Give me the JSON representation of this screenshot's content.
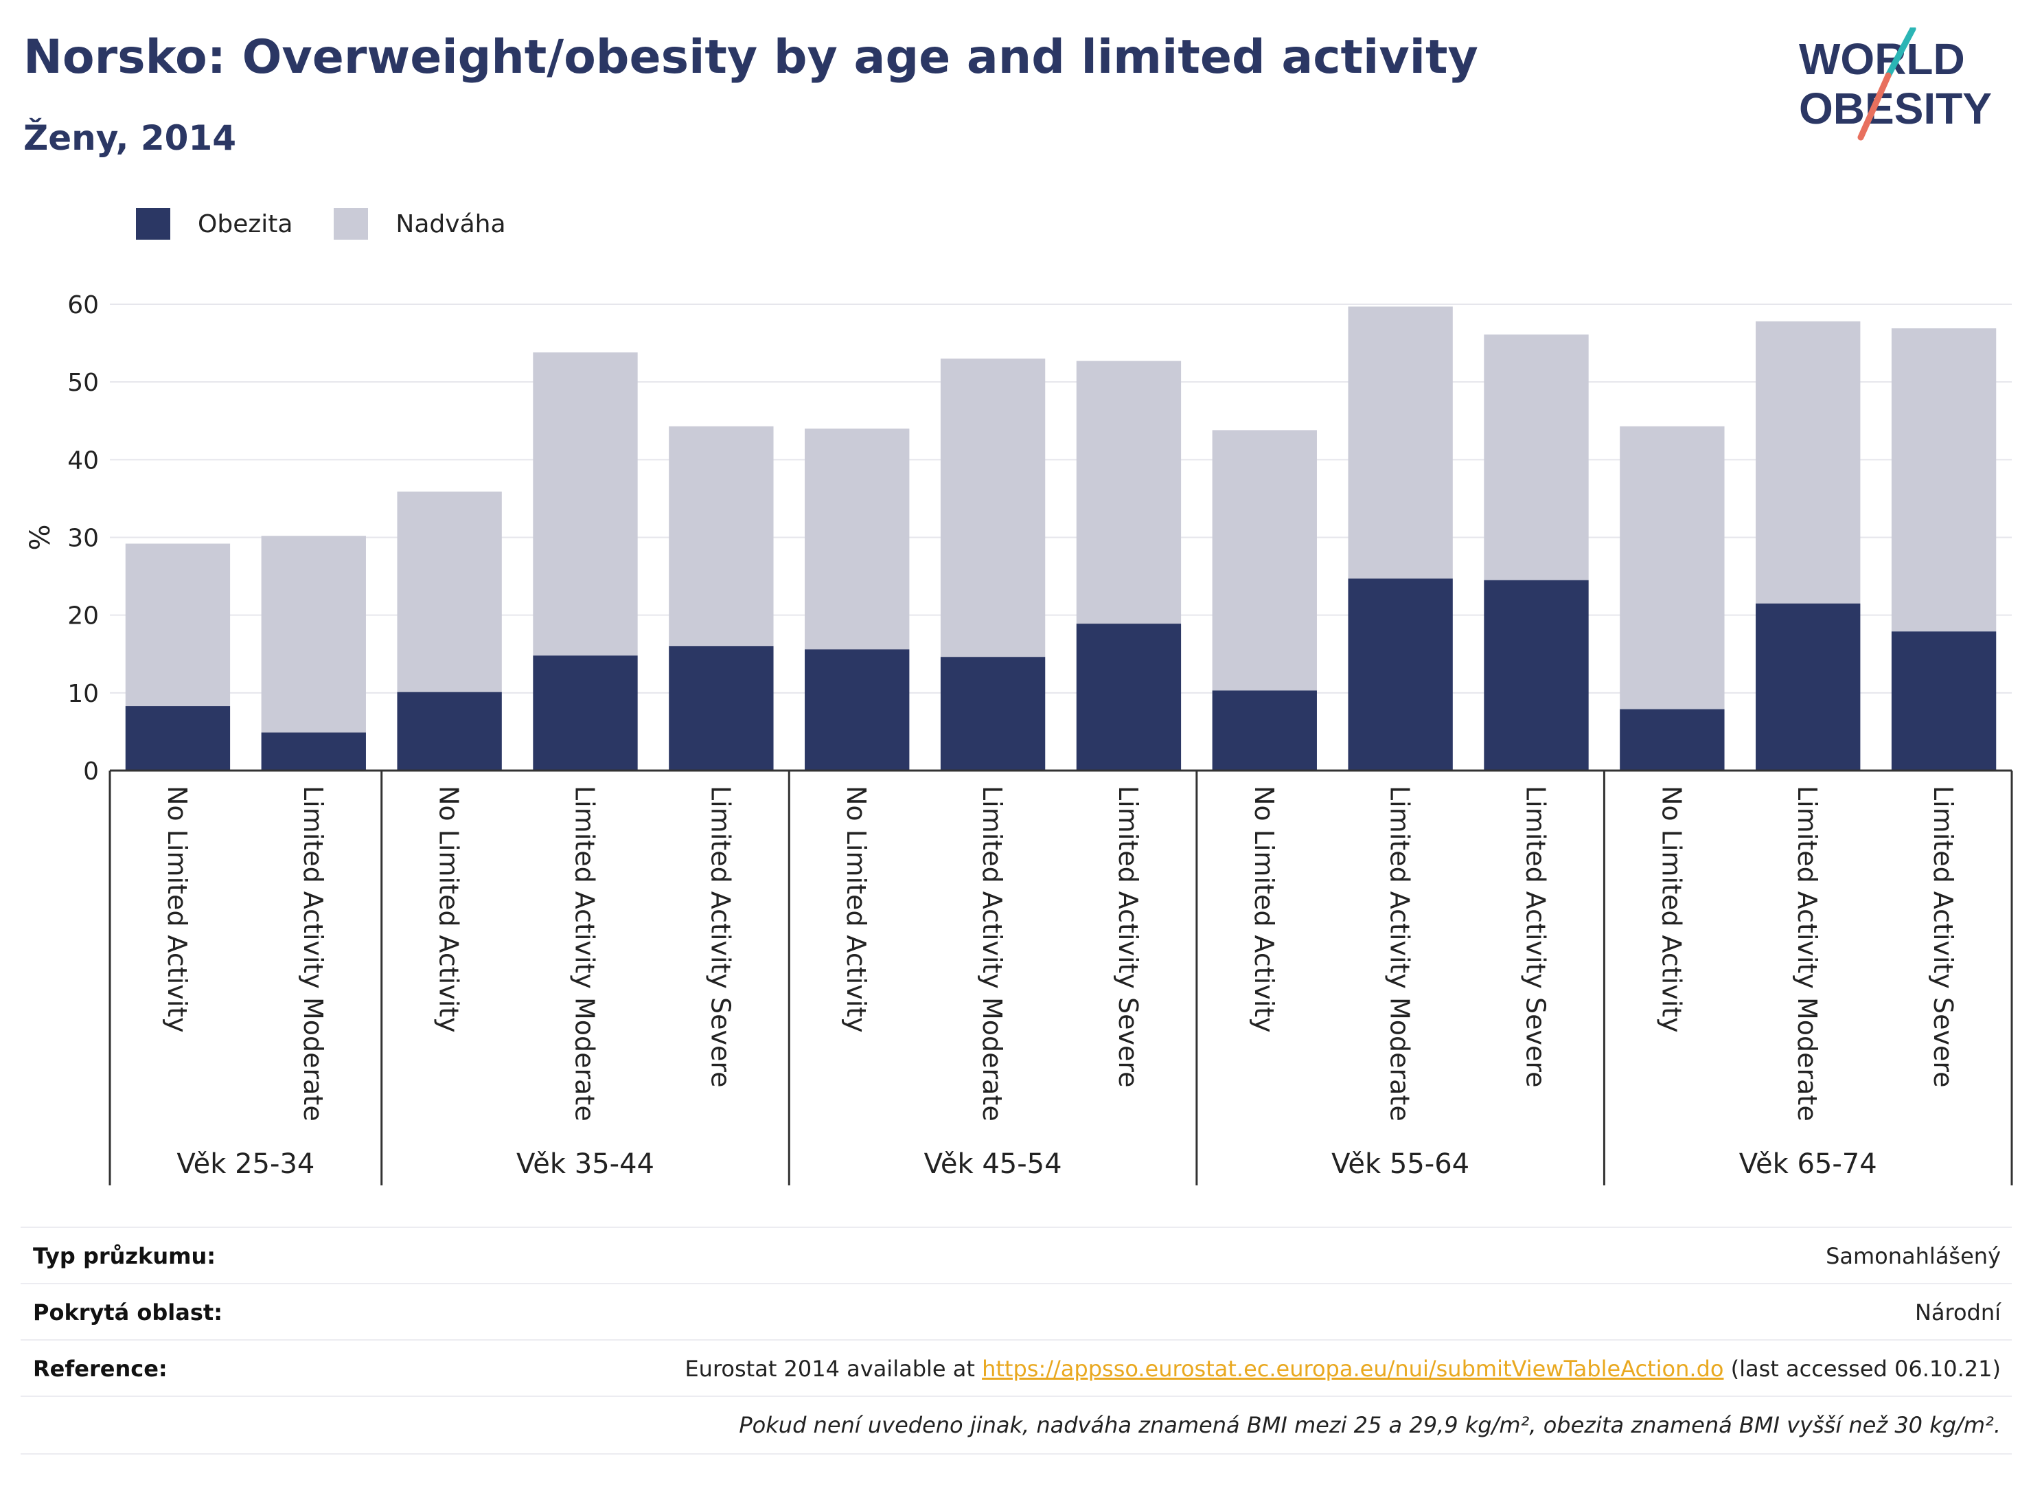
{
  "header": {
    "title": "Norsko: Overweight/obesity by age and limited activity",
    "subtitle": "Ženy, 2014"
  },
  "logo": {
    "line1": "WORLD",
    "line2": "OBESITY"
  },
  "colors": {
    "obesity": "#2b3764",
    "overweight": "#cacbd7",
    "title": "#2b3764",
    "link": "#e9a81f"
  },
  "chart_data": {
    "type": "bar",
    "stacked": true,
    "ylabel": "%",
    "ylim": [
      0,
      60
    ],
    "yticks": [
      0,
      10,
      20,
      30,
      40,
      50,
      60
    ],
    "grid": true,
    "legend_position": "top-left",
    "groups": [
      {
        "label": "Věk 25-34",
        "categories": [
          "No Limited Activity",
          "Limited Activity Moderate"
        ]
      },
      {
        "label": "Věk 35-44",
        "categories": [
          "No Limited Activity",
          "Limited Activity Moderate",
          "Limited Activity Severe"
        ]
      },
      {
        "label": "Věk 45-54",
        "categories": [
          "No Limited Activity",
          "Limited Activity Moderate",
          "Limited Activity Severe"
        ]
      },
      {
        "label": "Věk 55-64",
        "categories": [
          "No Limited Activity",
          "Limited Activity Moderate",
          "Limited Activity Severe"
        ]
      },
      {
        "label": "Věk 65-74",
        "categories": [
          "No Limited Activity",
          "Limited Activity Moderate",
          "Limited Activity Severe"
        ]
      }
    ],
    "series": [
      {
        "name": "Obezita",
        "values": [
          8.3,
          4.9,
          10.1,
          14.8,
          16.0,
          15.6,
          14.6,
          18.9,
          10.3,
          24.7,
          24.5,
          7.9,
          21.5,
          17.9
        ]
      },
      {
        "name": "Nadváha",
        "values": [
          20.9,
          25.3,
          25.8,
          39.0,
          28.3,
          28.4,
          38.4,
          33.8,
          33.5,
          35.0,
          31.6,
          36.4,
          36.3,
          39.0
        ]
      }
    ]
  },
  "info": {
    "survey_label": "Typ průzkumu:",
    "survey_value": "Samonahlášený",
    "area_label": "Pokrytá oblast:",
    "area_value": "Národní",
    "ref_label": "Reference:",
    "ref_prefix": "Eurostat 2014 available at",
    "ref_link": "https://appsso.eurostat.ec.europa.eu/nui/submitViewTableAction.do",
    "ref_suffix": "(last accessed 06.10.21)",
    "note": "Pokud není uvedeno jinak, nadváha znamená BMI mezi 25 a 29,9 kg/m², obezita znamená BMI vyšší než 30 kg/m²."
  }
}
